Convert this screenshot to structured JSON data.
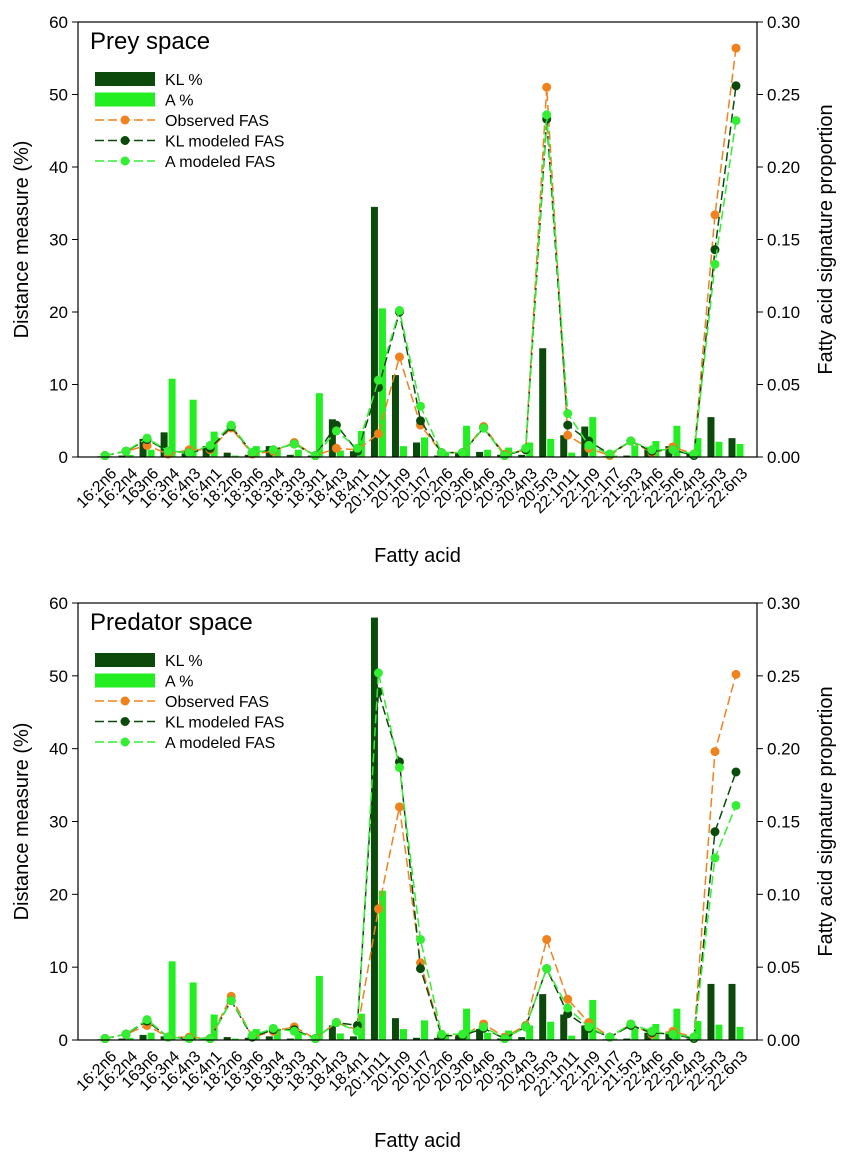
{
  "chart_data": [
    {
      "type": "combo",
      "title": "Prey space",
      "xlabel": "Fatty acid",
      "ylabel": "Distance measure (%)",
      "y2label": "Fatty acid signature proportion",
      "categories": [
        "16:2n6",
        "16:2n4",
        "163n6",
        "16:3n4",
        "16:4n3",
        "16:4n1",
        "18:2n6",
        "18:3n6",
        "18:3n4",
        "18:3n3",
        "18:3n1",
        "18:4n3",
        "18:4n1",
        "20:1n11",
        "20:1n9",
        "20:1n7",
        "20:2n6",
        "20:3n6",
        "20:4n6",
        "20:3n3",
        "20:4n3",
        "20:5n3",
        "22:1n11",
        "22:1n9",
        "22:1n7",
        "21:5n3",
        "22:4n6",
        "22:5n6",
        "22:4n3",
        "22:5n3",
        "22:6n3"
      ],
      "ylim": [
        0,
        60
      ],
      "yticks": [
        0,
        10,
        20,
        30,
        40,
        50,
        60
      ],
      "y2lim": [
        0,
        0.3
      ],
      "y2ticks": [
        {
          "value": 0,
          "label": "0.00"
        },
        {
          "value": 0.05,
          "label": "0.05"
        },
        {
          "value": 0.1,
          "label": "0.10"
        },
        {
          "value": 0.15,
          "label": "0.15"
        },
        {
          "value": 0.2,
          "label": "0.20"
        },
        {
          "value": 0.25,
          "label": "0.25"
        },
        {
          "value": 0.3,
          "label": "0.30"
        }
      ],
      "legend": "upper left",
      "series": [
        {
          "name": "KL %",
          "type": "bar",
          "color": "#0b4a0b",
          "values": [
            0.1,
            0.2,
            2.5,
            3.4,
            0.5,
            1.5,
            0.6,
            0.3,
            1.5,
            0.3,
            0.2,
            5.2,
            0.8,
            34.5,
            11.3,
            2.0,
            0.2,
            0.5,
            0.7,
            0.3,
            0.3,
            15.0,
            3.0,
            4.2,
            0.1,
            0.2,
            1.3,
            1.5,
            0.5,
            5.5,
            2.6
          ]
        },
        {
          "name": "A %",
          "type": "bar",
          "color": "#22ee22",
          "values": [
            0.1,
            0.3,
            1.0,
            10.8,
            7.9,
            3.5,
            0.2,
            1.5,
            1.3,
            1.0,
            8.8,
            0.9,
            3.6,
            20.5,
            1.5,
            2.7,
            0.5,
            4.3,
            1.0,
            1.3,
            2.0,
            2.5,
            0.6,
            5.5,
            0.2,
            1.6,
            2.2,
            4.3,
            2.6,
            2.1,
            1.8
          ]
        },
        {
          "name": "Observed FAS",
          "type": "line",
          "axis": "y2",
          "color": "#f0821e",
          "values": [
            0.001,
            0.004,
            0.008,
            0.002,
            0.005,
            0.005,
            0.02,
            0.002,
            0.004,
            0.01,
            0.001,
            0.006,
            0.005,
            0.016,
            0.069,
            0.022,
            0.003,
            0.003,
            0.021,
            0.002,
            0.005,
            0.255,
            0.015,
            0.006,
            0.001,
            0.011,
            0.003,
            0.007,
            0.002,
            0.167,
            0.282
          ]
        },
        {
          "name": "KL modeled FAS",
          "type": "line",
          "axis": "y2",
          "color": "#0b4a0b",
          "values": [
            0.001,
            0.004,
            0.012,
            0.004,
            0.003,
            0.006,
            0.021,
            0.003,
            0.005,
            0.009,
            0.001,
            0.022,
            0.004,
            0.048,
            0.1,
            0.025,
            0.003,
            0.003,
            0.02,
            0.001,
            0.005,
            0.233,
            0.022,
            0.011,
            0.002,
            0.011,
            0.004,
            0.005,
            0.001,
            0.143,
            0.256
          ]
        },
        {
          "name": "A modeled FAS",
          "type": "line",
          "axis": "y2",
          "color": "#33ee33",
          "values": [
            0.001,
            0.004,
            0.013,
            0.004,
            0.003,
            0.008,
            0.022,
            0.003,
            0.005,
            0.009,
            0.001,
            0.018,
            0.006,
            0.053,
            0.101,
            0.035,
            0.003,
            0.003,
            0.02,
            0.001,
            0.006,
            0.236,
            0.03,
            0.008,
            0.002,
            0.011,
            0.005,
            0.005,
            0.002,
            0.133,
            0.232
          ]
        }
      ]
    },
    {
      "type": "combo",
      "title": "Predator space",
      "xlabel": "Fatty acid",
      "ylabel": "Distance measure (%)",
      "y2label": "Fatty acid signature proportion",
      "categories": [
        "16:2n6",
        "16:2n4",
        "163n6",
        "16:3n4",
        "16:4n3",
        "16:4n1",
        "18:2n6",
        "18:3n6",
        "18:3n4",
        "18:3n3",
        "18:3n1",
        "18:4n3",
        "18:4n1",
        "20:1n11",
        "20:1n9",
        "20:1n7",
        "20:2n6",
        "20:3n6",
        "20:4n6",
        "20:3n3",
        "20:4n3",
        "20:5n3",
        "22:1n11",
        "22:1n9",
        "22:1n7",
        "21:5n3",
        "22:4n6",
        "22:5n6",
        "22:4n3",
        "22:5n3",
        "22:6n3"
      ],
      "ylim": [
        0,
        60
      ],
      "yticks": [
        0,
        10,
        20,
        30,
        40,
        50,
        60
      ],
      "y2lim": [
        0,
        0.3
      ],
      "y2ticks": [
        {
          "value": 0,
          "label": "0.00"
        },
        {
          "value": 0.05,
          "label": "0.05"
        },
        {
          "value": 0.1,
          "label": "0.10"
        },
        {
          "value": 0.15,
          "label": "0.15"
        },
        {
          "value": 0.2,
          "label": "0.20"
        },
        {
          "value": 0.25,
          "label": "0.25"
        },
        {
          "value": 0.3,
          "label": "0.30"
        }
      ],
      "legend": "upper left",
      "series": [
        {
          "name": "KL %",
          "type": "bar",
          "color": "#0b4a0b",
          "values": [
            0.1,
            0.2,
            0.7,
            0.5,
            0.2,
            0.3,
            0.4,
            0.3,
            0.5,
            0.2,
            0.1,
            2.0,
            0.5,
            58,
            3.0,
            0.3,
            0.3,
            0.6,
            1.5,
            0.2,
            0.4,
            6.3,
            3.5,
            2.0,
            0.1,
            0.2,
            1.0,
            1.0,
            0.2,
            7.7,
            7.7
          ]
        },
        {
          "name": "A %",
          "type": "bar",
          "color": "#22ee22",
          "values": [
            0.1,
            0.3,
            1.0,
            10.8,
            7.9,
            3.5,
            0.2,
            1.5,
            1.3,
            1.0,
            8.8,
            0.9,
            3.6,
            20.5,
            1.5,
            2.7,
            0.5,
            4.3,
            1.0,
            1.3,
            2.0,
            2.5,
            0.6,
            5.5,
            0.2,
            1.6,
            2.2,
            4.3,
            2.6,
            2.1,
            1.8
          ]
        },
        {
          "name": "Observed FAS",
          "type": "line",
          "axis": "y2",
          "color": "#f0821e",
          "values": [
            0.001,
            0.004,
            0.01,
            0.002,
            0.002,
            0.001,
            0.03,
            0.002,
            0.006,
            0.009,
            0.001,
            0.012,
            0.007,
            0.09,
            0.16,
            0.053,
            0.003,
            0.003,
            0.011,
            0.002,
            0.01,
            0.069,
            0.028,
            0.012,
            0.002,
            0.011,
            0.004,
            0.006,
            0.002,
            0.198,
            0.251
          ]
        },
        {
          "name": "KL modeled FAS",
          "type": "line",
          "axis": "y2",
          "color": "#0b4a0b",
          "values": [
            0.001,
            0.004,
            0.013,
            0.002,
            0.001,
            0.001,
            0.027,
            0.002,
            0.007,
            0.007,
            0.001,
            0.012,
            0.01,
            0.239,
            0.191,
            0.049,
            0.003,
            0.003,
            0.008,
            0.001,
            0.009,
            0.049,
            0.018,
            0.008,
            0.002,
            0.01,
            0.005,
            0.004,
            0.001,
            0.143,
            0.184
          ]
        },
        {
          "name": "A modeled FAS",
          "type": "line",
          "axis": "y2",
          "color": "#33ee33",
          "values": [
            0.001,
            0.004,
            0.014,
            0.002,
            0.001,
            0.001,
            0.027,
            0.003,
            0.008,
            0.006,
            0.001,
            0.012,
            0.006,
            0.252,
            0.187,
            0.069,
            0.004,
            0.004,
            0.009,
            0.001,
            0.009,
            0.049,
            0.022,
            0.009,
            0.002,
            0.011,
            0.006,
            0.004,
            0.002,
            0.125,
            0.161
          ]
        }
      ]
    }
  ]
}
